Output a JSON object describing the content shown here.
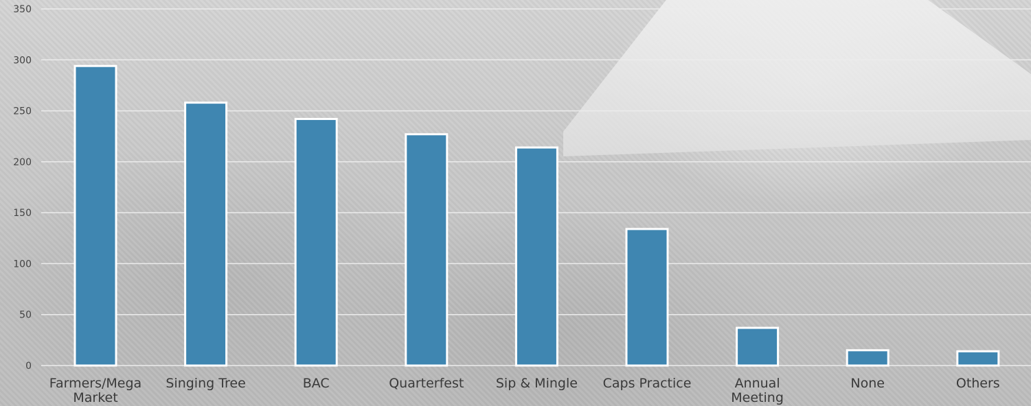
{
  "chart_data": {
    "type": "bar",
    "title": "",
    "xlabel": "",
    "ylabel": "",
    "ylim": [
      0,
      350
    ],
    "yticks": [
      0,
      50,
      100,
      150,
      200,
      250,
      300,
      350
    ],
    "grid": true,
    "categories": [
      [
        "Farmers/Mega",
        "Market"
      ],
      [
        "Singing Tree"
      ],
      [
        "BAC"
      ],
      [
        "Quarterfest"
      ],
      [
        "Sip & Mingle"
      ],
      [
        "Caps Practice"
      ],
      [
        "Annual",
        "Meeting"
      ],
      [
        "None"
      ],
      [
        "Others"
      ]
    ],
    "values": [
      294,
      258,
      242,
      227,
      214,
      134,
      37,
      15,
      14
    ],
    "colors": {
      "bar": "#3f86b1",
      "bar_outline": "#ffffff",
      "grid": "#ececec",
      "axis_text": "#444444",
      "category_text": "#3a3a3a"
    }
  }
}
